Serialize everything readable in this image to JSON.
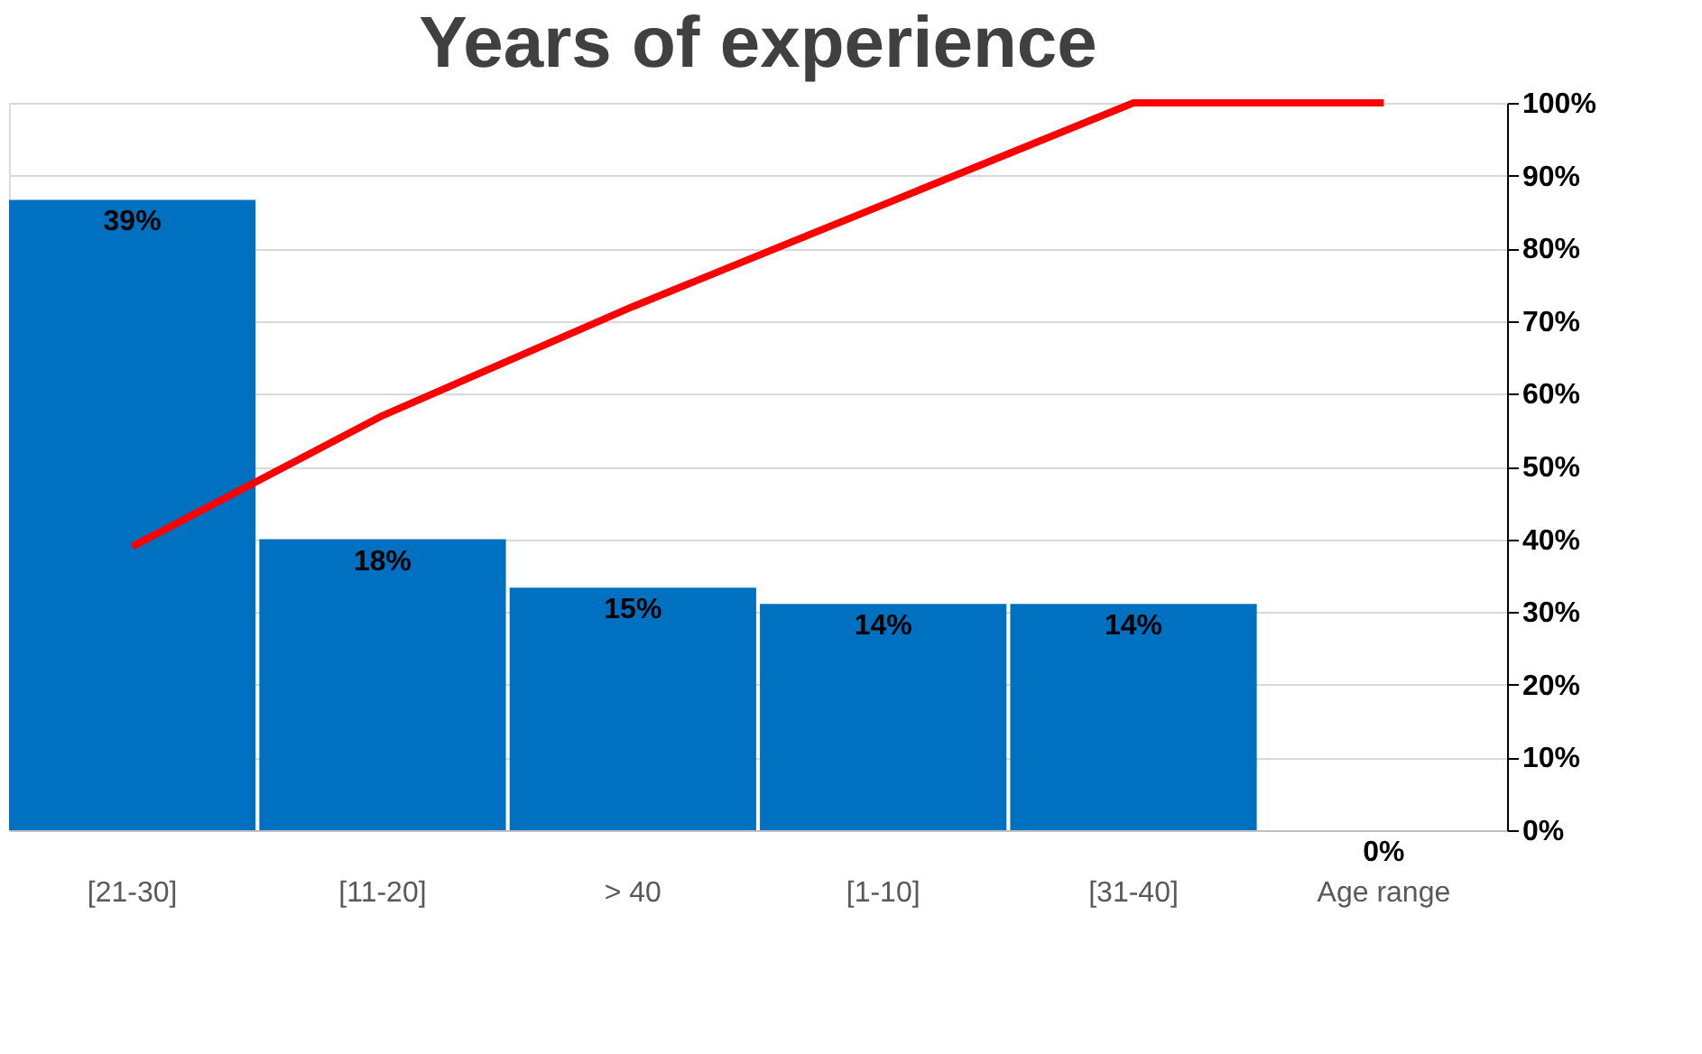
{
  "chart_data": {
    "type": "bar",
    "title": "Years of experience",
    "categories": [
      "[21-30]",
      "[11-20]",
      "> 40",
      "[1-10]",
      "[31-40]",
      "Age range"
    ],
    "series": [
      {
        "color": "#0070c0",
        "values": [
          39,
          18,
          15,
          14,
          14,
          0
        ],
        "value_labels": [
          "39%",
          "18%",
          "15%",
          "14%",
          "14%",
          "0%"
        ]
      },
      {
        "type": "line",
        "axis": "y2",
        "color": "#ff0000",
        "values": [
          39,
          57,
          72,
          86,
          100,
          100
        ],
        "marker": "none",
        "line_style": "solid"
      }
    ],
    "ylim": [
      0,
      45
    ],
    "y2lim": [
      0,
      100
    ],
    "y2ticks": [
      {
        "value": 0,
        "label": "0%"
      },
      {
        "value": 10,
        "label": "10%"
      },
      {
        "value": 20,
        "label": "20%"
      },
      {
        "value": 30,
        "label": "30%"
      },
      {
        "value": 40,
        "label": "40%"
      },
      {
        "value": 50,
        "label": "50%"
      },
      {
        "value": 60,
        "label": "60%"
      },
      {
        "value": 70,
        "label": "70%"
      },
      {
        "value": 80,
        "label": "80%"
      },
      {
        "value": 90,
        "label": "90%"
      },
      {
        "value": 100,
        "label": "100%"
      }
    ],
    "tick_labels": [
      "x",
      "y2"
    ],
    "grid": "y"
  }
}
